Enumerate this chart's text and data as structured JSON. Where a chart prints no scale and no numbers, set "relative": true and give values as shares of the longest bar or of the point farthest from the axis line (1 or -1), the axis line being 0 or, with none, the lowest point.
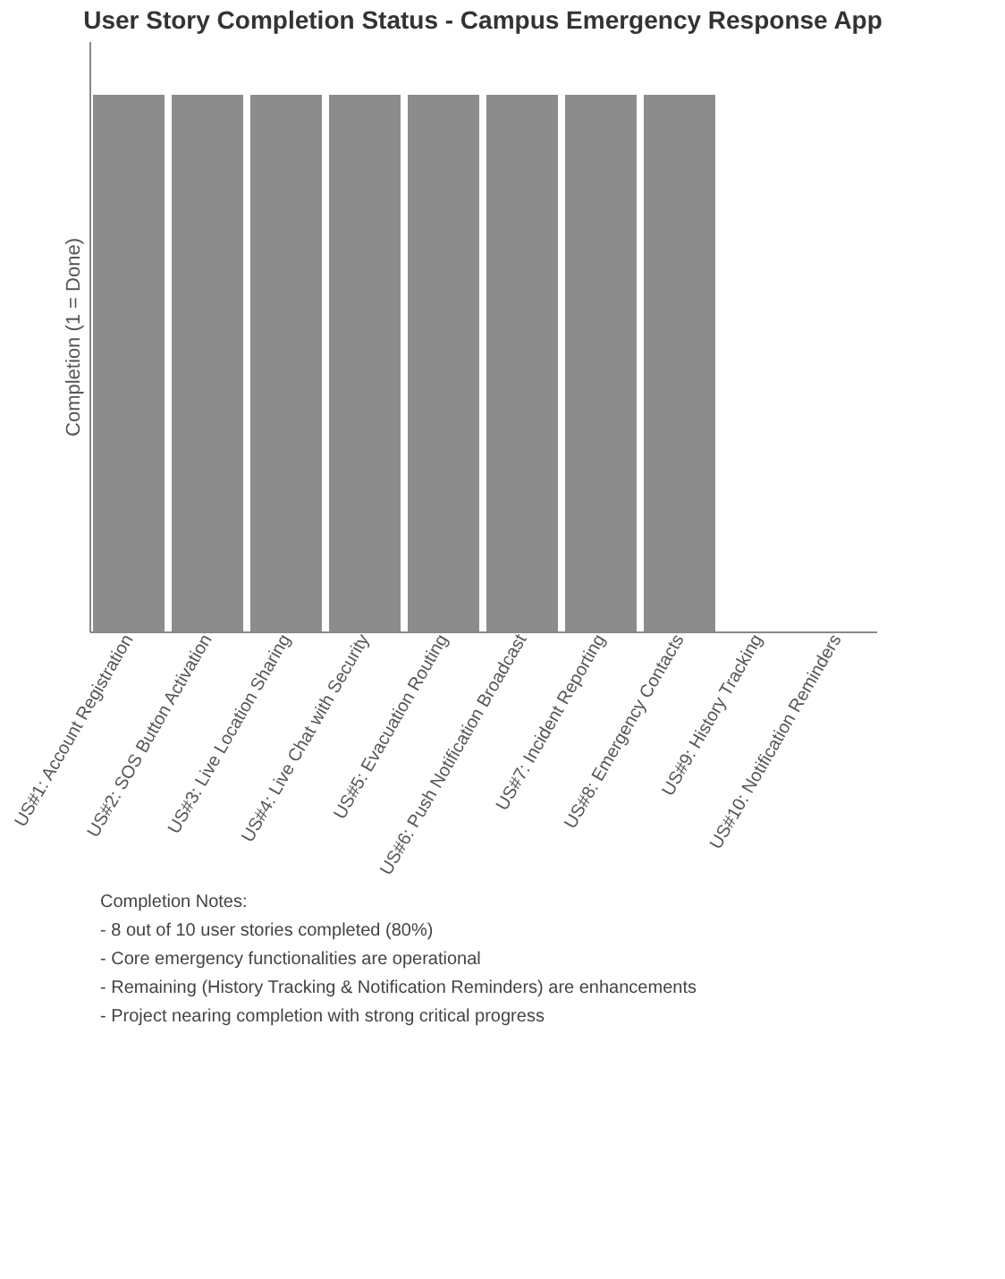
{
  "chart_data": {
    "type": "bar",
    "title": "User Story Completion Status - Campus Emergency Response App",
    "ylabel": "Completion (1 = Done)",
    "categories": [
      "US#1: Account Registration",
      "US#2: SOS Button Activation",
      "US#3: Live Location Sharing",
      "US#4: Live Chat with Security",
      "US#5: Evacuation Routing",
      "US#6: Push Notification Broadcast",
      "US#7: Incident Reporting",
      "US#8: Emergency Contacts",
      "US#9: History Tracking",
      "US#10: Notification Reminders"
    ],
    "values": [
      1,
      1,
      1,
      1,
      1,
      1,
      1,
      1,
      0,
      0
    ],
    "color": "#8c8c8c",
    "relative": true,
    "grid": false,
    "annotations": [
      "Completion Notes:",
      "- 8 out of 10 user stories completed (80%)",
      "- Core emergency functionalities are operational",
      "- Remaining (History Tracking & Notification Reminders) are enhancements",
      "- Project nearing completion with strong critical progress"
    ]
  }
}
